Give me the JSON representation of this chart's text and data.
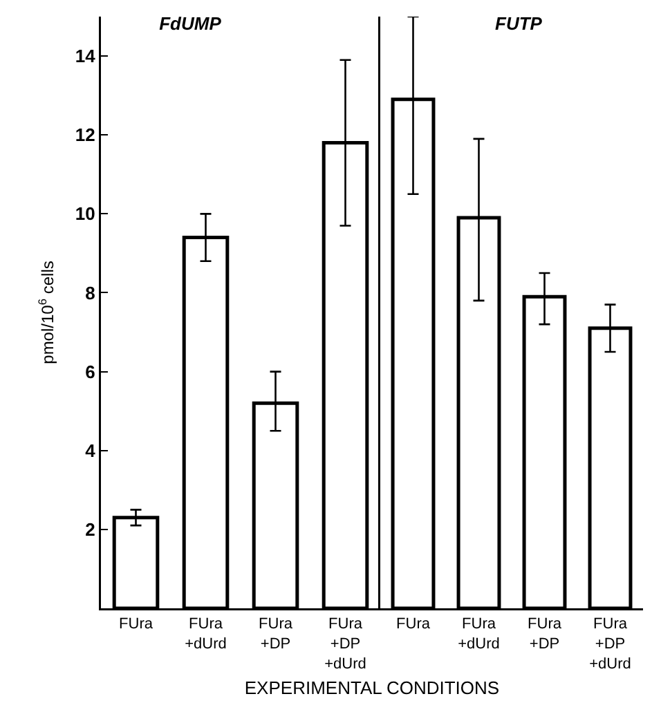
{
  "chart_data": [
    {
      "type": "bar",
      "title": "FdUMP",
      "ylabel": "pmol/10$^{6}$ cells",
      "xlabel": "EXPERIMENTAL CONDITIONS",
      "categories": [
        "FUra",
        "FUra\n+dUrd",
        "FUra\n+DP",
        "FUra\n+DP\n+dUrd"
      ],
      "values": [
        2.3,
        9.4,
        5.2,
        11.8
      ],
      "color": "#ffffff",
      "errors": [
        [
          2.1,
          2.5
        ],
        [
          8.8,
          10.0
        ],
        [
          4.5,
          6.0
        ],
        [
          9.7,
          13.9
        ]
      ],
      "ylim": [
        0,
        15
      ],
      "yticks": [
        2,
        4,
        6,
        8,
        10,
        12,
        14
      ]
    },
    {
      "type": "bar",
      "title": "FUTP",
      "categories": [
        "FUra",
        "FUra\n+dUrd",
        "FUra\n+DP",
        "FUra\n+DP\n+dUrd"
      ],
      "values": [
        12.9,
        9.9,
        7.9,
        7.1
      ],
      "color": "#ffffff",
      "errors": [
        [
          10.5,
          15.0
        ],
        [
          7.8,
          11.9
        ],
        [
          7.2,
          8.5
        ],
        [
          6.5,
          7.7
        ]
      ],
      "ylim": [
        0,
        15
      ],
      "yticks": [
        2,
        4,
        6,
        8,
        10,
        12,
        14
      ],
      "tick_labels": "x"
    }
  ]
}
